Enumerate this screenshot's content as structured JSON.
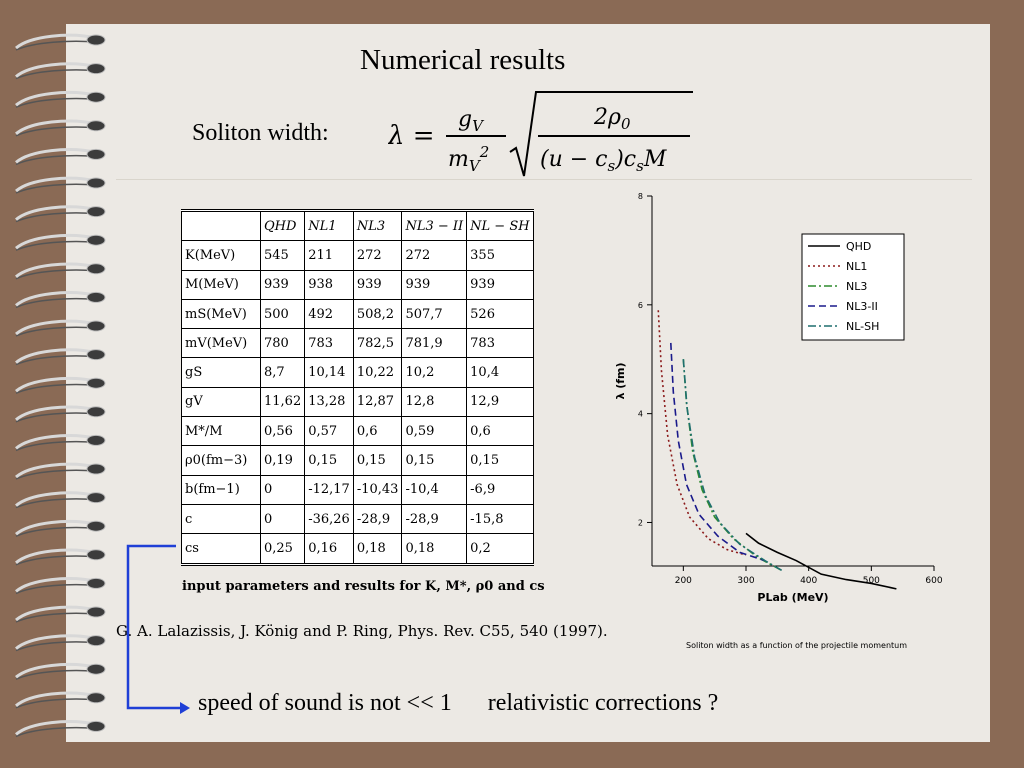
{
  "slide": {
    "title": "Numerical results",
    "formula_label": "Soliton  width:",
    "table_caption": "input parameters and results for K, M*, ρ0 and cs",
    "reference": "G. A. Lalazissis, J. König and P. Ring, Phys. Rev. C55, 540 (1997).",
    "chart_caption": "Soliton width as a function of the projectile momentum",
    "bottom_left": "speed of sound is not << 1",
    "bottom_right": "relativistic  corrections ?"
  },
  "formula": {
    "lhs": "λ =",
    "num": "gV",
    "den": "mV2",
    "sqrt_num": "2ρ0",
    "sqrt_den": "(u − cs)csM"
  },
  "table": {
    "headers": [
      "",
      "QHD",
      "NL1",
      "NL3",
      "NL3 − II",
      "NL − SH"
    ],
    "rows": [
      [
        "K(MeV)",
        "545",
        "211",
        "272",
        "272",
        "355"
      ],
      [
        "M(MeV)",
        "939",
        "938",
        "939",
        "939",
        "939"
      ],
      [
        "mS(MeV)",
        "500",
        "492",
        "508,2",
        "507,7",
        "526"
      ],
      [
        "mV(MeV)",
        "780",
        "783",
        "782,5",
        "781,9",
        "783"
      ],
      [
        "gS",
        "8,7",
        "10,14",
        "10,22",
        "10,2",
        "10,4"
      ],
      [
        "gV",
        "11,62",
        "13,28",
        "12,87",
        "12,8",
        "12,9"
      ],
      [
        "M*/M",
        "0,56",
        "0,57",
        "0,6",
        "0,59",
        "0,6"
      ],
      [
        "ρ0(fm−3)",
        "0,19",
        "0,15",
        "0,15",
        "0,15",
        "0,15"
      ],
      [
        "b(fm−1)",
        "0",
        "-12,17",
        "-10,43",
        "-10,4",
        "-6,9"
      ],
      [
        "c",
        "0",
        "-36,26",
        "-28,9",
        "-28,9",
        "-15,8"
      ],
      [
        "cs",
        "0,25",
        "0,16",
        "0,18",
        "0,18",
        "0,2"
      ]
    ]
  },
  "chart_data": {
    "type": "line",
    "xlabel": "PLab (MeV)",
    "ylabel": "λ (fm)",
    "xlim": [
      150,
      600
    ],
    "ylim": [
      1.2,
      8
    ],
    "xticks": [
      200,
      300,
      400,
      500,
      600
    ],
    "yticks": [
      2,
      4,
      6,
      8
    ],
    "legend_position": "top-right",
    "series": [
      {
        "name": "QHD",
        "color": "#000000",
        "dash": "solid",
        "x": [
          300,
          320,
          350,
          380,
          420,
          460,
          500,
          540
        ],
        "y": [
          1.8,
          1.62,
          1.45,
          1.3,
          1.05,
          0.95,
          0.88,
          0.78
        ]
      },
      {
        "name": "NL1",
        "color": "#8b1a1a",
        "dash": "dot",
        "x": [
          160,
          165,
          175,
          190,
          210,
          240,
          270,
          300
        ],
        "y": [
          5.9,
          4.8,
          3.6,
          2.7,
          2.1,
          1.7,
          1.5,
          1.4
        ]
      },
      {
        "name": "NL3",
        "color": "#2e8b2e",
        "dash": "dashdot",
        "x": [
          200,
          205,
          215,
          230,
          250,
          280,
          320,
          360
        ],
        "y": [
          5.0,
          4.2,
          3.3,
          2.6,
          2.1,
          1.7,
          1.35,
          1.1
        ]
      },
      {
        "name": "NL3-II",
        "color": "#1a1a8b",
        "dash": "dash",
        "x": [
          180,
          184,
          192,
          205,
          225,
          255,
          290,
          330
        ],
        "y": [
          5.3,
          4.4,
          3.5,
          2.7,
          2.15,
          1.75,
          1.45,
          1.3
        ]
      },
      {
        "name": "NL-SH",
        "color": "#1f6f6f",
        "dash": "dashdot",
        "x": [
          200,
          206,
          218,
          235,
          258,
          290,
          330,
          360
        ],
        "y": [
          5.0,
          4.1,
          3.2,
          2.5,
          2.0,
          1.6,
          1.3,
          1.1
        ]
      }
    ]
  }
}
